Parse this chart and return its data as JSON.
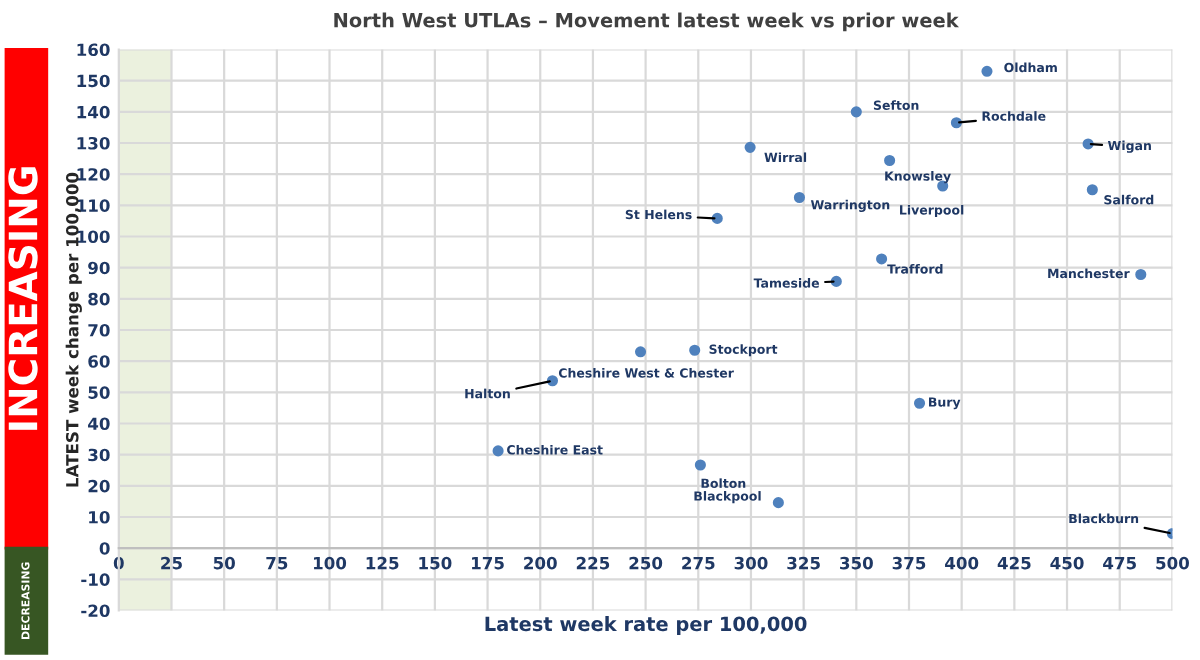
{
  "chart_data": {
    "type": "scatter",
    "title": "North West UTLAs – Movement latest week vs prior week",
    "xlabel": "Latest week rate per 100,000",
    "ylabel": "LATEST week change per 100,000",
    "series": [
      {
        "color": "#4f81bd",
        "x": [
          412,
          350,
          397.5,
          299.6,
          365.8,
          391,
          323,
          284,
          460,
          462,
          362,
          340.5,
          485,
          247.6,
          273.3,
          205.8,
          180,
          380,
          276,
          313,
          500
        ],
        "values": [
          153,
          140,
          136.5,
          128.6,
          124.4,
          116.2,
          112.5,
          105.8,
          129.7,
          115,
          92.8,
          85.6,
          87.8,
          63,
          63.5,
          53.7,
          31.2,
          46.5,
          26.7,
          14.6,
          4.7
        ]
      }
    ],
    "annotations": [
      {
        "text": "Oldham",
        "x": 412,
        "y": 153
      },
      {
        "text": "Sefton",
        "x": 350,
        "y": 140
      },
      {
        "text": "Rochdale",
        "x": 397.5,
        "y": 136.5
      },
      {
        "text": "Wirral",
        "x": 299.6,
        "y": 128.6
      },
      {
        "text": "Knowsley",
        "x": 365.8,
        "y": 124.4
      },
      {
        "text": "Liverpool",
        "x": 391,
        "y": 116.2
      },
      {
        "text": "Warrington",
        "x": 323,
        "y": 112.5
      },
      {
        "text": "St Helens",
        "x": 284,
        "y": 105.8
      },
      {
        "text": "Wigan",
        "x": 460,
        "y": 129.7
      },
      {
        "text": "Salford",
        "x": 462,
        "y": 115
      },
      {
        "text": "Trafford",
        "x": 362,
        "y": 92.8
      },
      {
        "text": "Tameside",
        "x": 340.5,
        "y": 85.6
      },
      {
        "text": "Manchester",
        "x": 485,
        "y": 87.8
      },
      {
        "text": "Cheshire West & Chester",
        "x": 247.6,
        "y": 63
      },
      {
        "text": "Stockport",
        "x": 273.3,
        "y": 63.5
      },
      {
        "text": "Halton",
        "x": 205.8,
        "y": 53.7
      },
      {
        "text": "Cheshire East",
        "x": 180,
        "y": 31.2
      },
      {
        "text": "Bury",
        "x": 380,
        "y": 46.5
      },
      {
        "text": "Bolton",
        "x": 276,
        "y": 26.7
      },
      {
        "text": "Blackpool",
        "x": 313,
        "y": 14.6
      },
      {
        "text": "Blackburn",
        "x": 500,
        "y": 4.7
      },
      "INCREASING",
      "DECREASING"
    ],
    "bands": [
      {
        "axis": "x",
        "from": 0,
        "to": 25,
        "color": "#ebf1de"
      }
    ],
    "xlim": [
      0,
      500
    ],
    "xticks": [
      0,
      25,
      50,
      75,
      100,
      125,
      150,
      175,
      200,
      225,
      250,
      275,
      300,
      325,
      350,
      375,
      400,
      425,
      450,
      475,
      500
    ],
    "ylim": [
      -20,
      160
    ],
    "yticks": [
      -20,
      -10,
      0,
      10,
      20,
      30,
      40,
      50,
      60,
      70,
      80,
      90,
      100,
      110,
      120,
      130,
      140,
      150,
      160
    ],
    "grid": true,
    "marker": "circle",
    "legend": false
  }
}
